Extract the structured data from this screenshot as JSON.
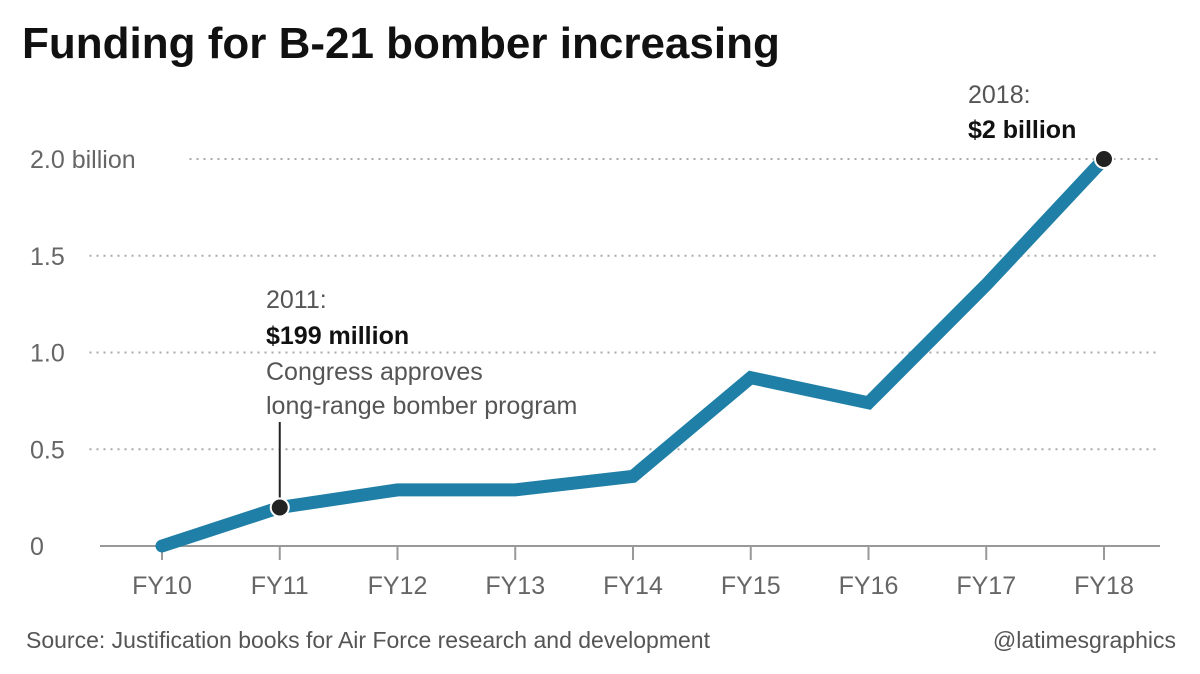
{
  "chart_data": {
    "type": "line",
    "title": "Funding for B-21 bomber increasing",
    "categories": [
      "FY10",
      "FY11",
      "FY12",
      "FY13",
      "FY14",
      "FY15",
      "FY16",
      "FY17",
      "FY18"
    ],
    "series": [
      {
        "values": [
          0,
          0.199,
          0.29,
          0.29,
          0.36,
          0.87,
          0.74,
          1.35,
          2.0
        ],
        "color": "#1f7fa6"
      }
    ],
    "yticks": [
      {
        "value": 0,
        "label": "0"
      },
      {
        "value": 0.5,
        "label": "0.5"
      },
      {
        "value": 1.0,
        "label": "1.0"
      },
      {
        "value": 1.5,
        "label": "1.5"
      },
      {
        "value": 2.0,
        "label": "2.0 billion"
      }
    ],
    "ylim": [
      0,
      2.0
    ],
    "grid": true,
    "annotations": [
      {
        "index": 1,
        "label": "2011:",
        "value_label": "$199 million",
        "note_lines": [
          "Congress approves",
          "long-range bomber program"
        ]
      },
      {
        "index": 8,
        "label": "2018:",
        "value_label": "$2 billion"
      }
    ]
  },
  "footer": {
    "source": "Source: Justification books for Air Force research and development",
    "credit": "@latimesgraphics"
  }
}
